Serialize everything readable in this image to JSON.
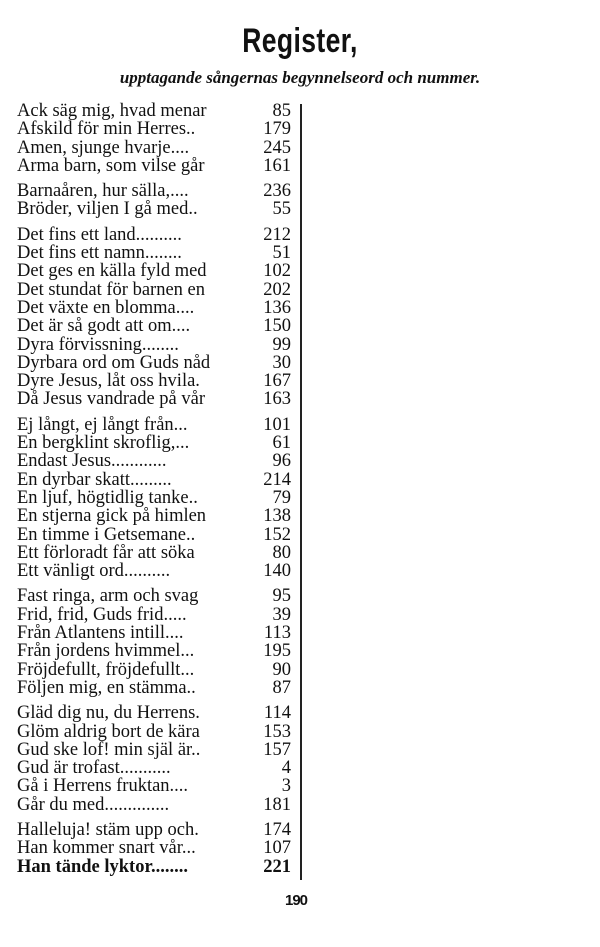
{
  "title": "Register,",
  "subtitle": "upptagande sångernas begynnelseord och nummer.",
  "groups": [
    {
      "entries": [
        {
          "text": "Ack säg mig, hvad menar",
          "num": "85"
        },
        {
          "text": "Afskild för min Herres..",
          "num": "179"
        },
        {
          "text": "Amen, sjunge hvarje....",
          "num": "245"
        },
        {
          "text": "Arma barn, som vilse går",
          "num": "161"
        }
      ]
    },
    {
      "entries": [
        {
          "text": "Barnaåren, hur sälla,....",
          "num": "236"
        },
        {
          "text": "Bröder, viljen I gå med..",
          "num": "55"
        }
      ]
    },
    {
      "entries": [
        {
          "text": "Det fins ett land..........",
          "num": "212"
        },
        {
          "text": "Det fins ett namn........",
          "num": "51"
        },
        {
          "text": "Det ges en källa fyld med",
          "num": "102"
        },
        {
          "text": "Det stundat för barnen en",
          "num": "202"
        },
        {
          "text": "Det växte en blomma....",
          "num": "136"
        },
        {
          "text": "Det är så godt att om....",
          "num": "150"
        },
        {
          "text": "Dyra förvissning........",
          "num": "99"
        },
        {
          "text": "Dyrbara ord om Guds nåd",
          "num": "30"
        },
        {
          "text": "Dyre Jesus, låt oss hvila.",
          "num": "167"
        },
        {
          "text": "Då Jesus vandrade på vår",
          "num": "163"
        }
      ]
    },
    {
      "entries": [
        {
          "text": "Ej långt, ej långt från...",
          "num": "101"
        },
        {
          "text": "En bergklint skroflig,...",
          "num": "61"
        },
        {
          "text": "Endast Jesus............",
          "num": "96"
        },
        {
          "text": "En dyrbar skatt.........",
          "num": "214"
        },
        {
          "text": "En ljuf, högtidlig tanke..",
          "num": "79"
        },
        {
          "text": "En stjerna gick på himlen",
          "num": "138"
        },
        {
          "text": "En timme i Getsemane..",
          "num": "152"
        },
        {
          "text": "Ett förloradt får att söka",
          "num": "80"
        },
        {
          "text": "Ett vänligt ord..........",
          "num": "140"
        }
      ]
    },
    {
      "entries": [
        {
          "text": "Fast ringa, arm och svag",
          "num": "95"
        },
        {
          "text": "Frid, frid, Guds frid.....",
          "num": "39"
        },
        {
          "text": "Från Atlantens intill....",
          "num": "113"
        },
        {
          "text": "Från jordens hvimmel...",
          "num": "195"
        },
        {
          "text": "Fröjdefullt, fröjdefullt...",
          "num": "90"
        },
        {
          "text": "Följen mig, en stämma..",
          "num": "87"
        }
      ]
    },
    {
      "entries": [
        {
          "text": "Gläd dig nu, du Herrens.",
          "num": "114"
        },
        {
          "text": "Glöm aldrig bort de kära",
          "num": "153"
        },
        {
          "text": "Gud ske lof! min själ är..",
          "num": "157"
        },
        {
          "text": "Gud är trofast...........",
          "num": "4"
        },
        {
          "text": "Gå i Herrens fruktan....",
          "num": "3"
        },
        {
          "text": "Går du med..............",
          "num": "181"
        }
      ]
    },
    {
      "entries": [
        {
          "text": "Halleluja! stäm upp och.",
          "num": "174"
        },
        {
          "text": "Han kommer snart vår...",
          "num": "107"
        },
        {
          "text": "Han tände lyktor........",
          "num": "221",
          "bold": true
        }
      ]
    }
  ],
  "page_number": "190"
}
